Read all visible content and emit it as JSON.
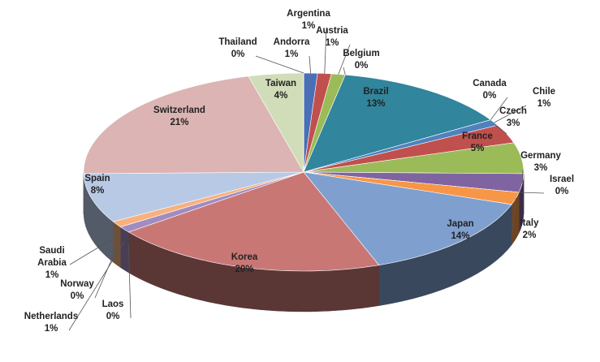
{
  "chart_data": {
    "type": "pie3d",
    "categories": [
      "Andorra",
      "Argentina",
      "Austria",
      "Belgium",
      "Brazil",
      "Canada",
      "Chile",
      "Czech",
      "France",
      "Germany",
      "Israel",
      "Italy",
      "Japan",
      "Korea",
      "Laos",
      "Netherlands",
      "Norway",
      "Saudi Arabia",
      "Spain",
      "Switzerland",
      "Taiwan",
      "Thailand"
    ],
    "values": [
      1,
      1,
      1,
      0,
      13,
      0,
      1,
      3,
      5,
      3,
      0,
      2,
      14,
      20,
      0,
      1,
      0,
      1,
      8,
      21,
      4,
      0
    ],
    "value_labels": [
      "1%",
      "1%",
      "1%",
      "0%",
      "13%",
      "0%",
      "1%",
      "3%",
      "5%",
      "3%",
      "0%",
      "2%",
      "14%",
      "20%",
      "0%",
      "1%",
      "0%",
      "1%",
      "8%",
      "21%",
      "4%",
      "0%"
    ],
    "colors": [
      "#4a6fb5",
      "#c0504d",
      "#9bbb59",
      "#8064a2",
      "#31859c",
      "#f79646",
      "#4f81bd",
      "#c0504d",
      "#9bbb59",
      "#8064a2",
      "#4bacc6",
      "#f79646",
      "#7f9fcf",
      "#c97775",
      "#b3c98a",
      "#a08cbf",
      "#7fc6d9",
      "#f9b07f",
      "#b8c9e6",
      "#dcb4b4",
      "#d0ddb8",
      "#c0b1d4"
    ]
  }
}
